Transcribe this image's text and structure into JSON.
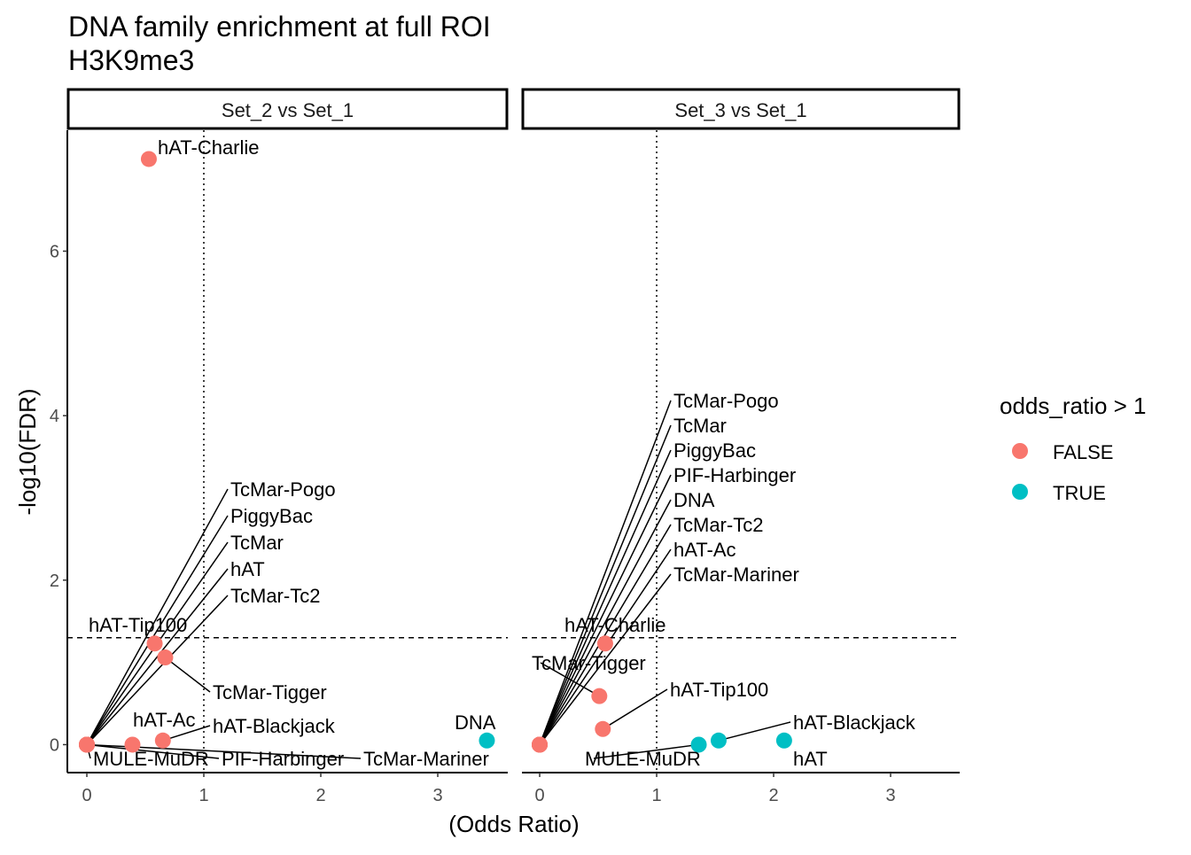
{
  "chart_data": {
    "type": "scatter",
    "title": "DNA family enrichment at full ROI",
    "subtitle": "H3K9me3",
    "xlabel": "(Odds Ratio)",
    "ylabel": "-log10(FDR)",
    "xlim": [
      -0.17,
      3.6
    ],
    "ylim": [
      -0.34,
      7.47
    ],
    "x_ticks": [
      0,
      1,
      2,
      3
    ],
    "y_ticks": [
      0,
      2,
      4,
      6
    ],
    "grid": false,
    "reference_lines": {
      "hline_y": 1.3,
      "hline_style": "dashed",
      "vline_x": 1,
      "vline_style": "dotted"
    },
    "legend": {
      "title": "odds_ratio > 1",
      "placement": "right",
      "entries": [
        {
          "label": "FALSE",
          "color": "#F8766D"
        },
        {
          "label": "TRUE",
          "color": "#00BFC4"
        }
      ]
    },
    "panels": [
      {
        "strip": "Set_2 vs Set_1",
        "points": [
          {
            "label": "hAT-Charlie",
            "x": 0.53,
            "y": 7.12,
            "group": "FALSE"
          },
          {
            "label": "hAT-Tip100",
            "x": 0.58,
            "y": 1.23,
            "group": "FALSE"
          },
          {
            "label": "TcMar-Tigger",
            "x": 0.67,
            "y": 1.06,
            "group": "FALSE"
          },
          {
            "label": "TcMar-Pogo",
            "x": 0,
            "y": 0,
            "group": "FALSE"
          },
          {
            "label": "PiggyBac",
            "x": 0,
            "y": 0,
            "group": "FALSE"
          },
          {
            "label": "TcMar",
            "x": 0,
            "y": 0,
            "group": "FALSE"
          },
          {
            "label": "hAT-Ac",
            "x": 0.39,
            "y": 0,
            "group": "FALSE"
          },
          {
            "label": "hAT-Blackjack",
            "x": 0.65,
            "y": 0.05,
            "group": "FALSE"
          },
          {
            "label": "hAT",
            "x": 0,
            "y": 0,
            "group": "FALSE"
          },
          {
            "label": "TcMar-Tc2",
            "x": 0,
            "y": 0,
            "group": "FALSE"
          },
          {
            "label": "MULE-MuDR",
            "x": 0,
            "y": 0,
            "group": "FALSE"
          },
          {
            "label": "PIF-Harbinger",
            "x": 0,
            "y": 0,
            "group": "FALSE"
          },
          {
            "label": "TcMar-Mariner",
            "x": 0,
            "y": 0,
            "group": "FALSE"
          },
          {
            "label": "DNA",
            "x": 3.42,
            "y": 0.05,
            "group": "TRUE"
          }
        ]
      },
      {
        "strip": "Set_3 vs Set_1",
        "points": [
          {
            "label": "hAT-Charlie",
            "x": 0.56,
            "y": 1.23,
            "group": "FALSE"
          },
          {
            "label": "TcMar-Tigger",
            "x": 0.51,
            "y": 0.59,
            "group": "FALSE"
          },
          {
            "label": "TcMar",
            "x": 0,
            "y": 0,
            "group": "FALSE"
          },
          {
            "label": "hAT-Tip100",
            "x": 0.54,
            "y": 0.19,
            "group": "FALSE"
          },
          {
            "label": "TcMar-Pogo",
            "x": 0,
            "y": 0,
            "group": "FALSE"
          },
          {
            "label": "PiggyBac",
            "x": 0,
            "y": 0,
            "group": "FALSE"
          },
          {
            "label": "PIF-Harbinger",
            "x": 0,
            "y": 0,
            "group": "FALSE"
          },
          {
            "label": "DNA",
            "x": 0,
            "y": 0,
            "group": "FALSE"
          },
          {
            "label": "TcMar-Tc2",
            "x": 0,
            "y": 0,
            "group": "FALSE"
          },
          {
            "label": "hAT-Ac",
            "x": 0,
            "y": 0,
            "group": "FALSE"
          },
          {
            "label": "TcMar-Mariner",
            "x": 0,
            "y": 0,
            "group": "FALSE"
          },
          {
            "label": "MULE-MuDR",
            "x": 1.36,
            "y": 0,
            "group": "TRUE"
          },
          {
            "label": "hAT-Blackjack",
            "x": 1.53,
            "y": 0.05,
            "group": "TRUE"
          },
          {
            "label": "hAT",
            "x": 2.09,
            "y": 0.05,
            "group": "TRUE"
          }
        ]
      }
    ]
  }
}
